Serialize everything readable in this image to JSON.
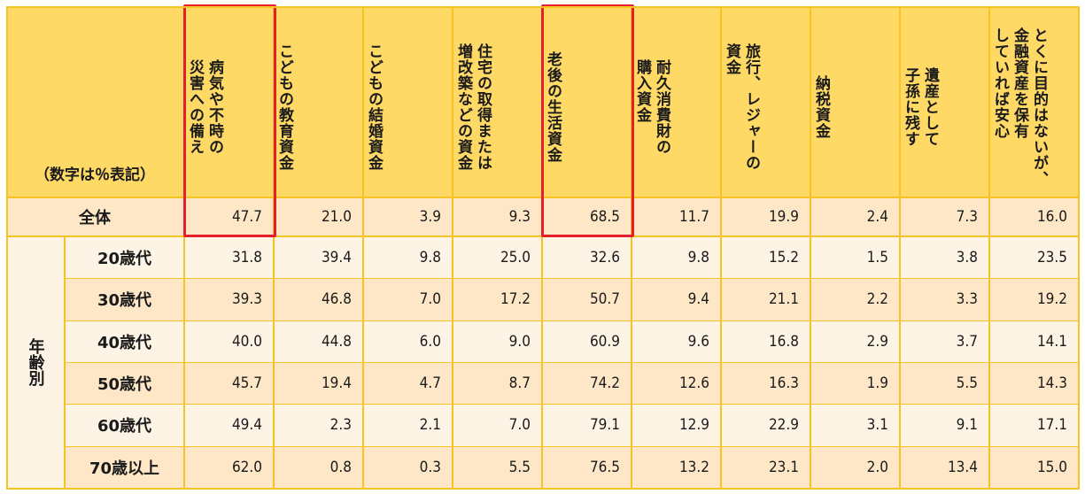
{
  "note": "（数字は％表記）",
  "columns": [
    "病気や不時の災害への備え",
    "こどもの教育資金",
    "こどもの結婚資金",
    "住宅の取得または増改築などの資金",
    "老後の生活資金",
    "耐久消費財の購入資金",
    "旅行、レジャーの資金",
    "納税資金",
    "遺産として子孫に残す",
    "とくに目的はないが、金融資産を保有していれば安心"
  ],
  "column_display": [
    "病気や不時の\n災害への備え",
    "こどもの教育資金",
    "こどもの結婚資金",
    "住宅の取得または\n増改築などの資金",
    "老後の生活資金",
    "耐久消費財の\n購入資金",
    "旅行、レジャーの\n資金",
    "納税資金",
    "遺産として\n子孫に残す",
    "とくに目的はないが、\n金融資産を保有\nしていれば安心"
  ],
  "total_row": {
    "label": "全体",
    "values": [
      "47.7",
      "21.0",
      "3.9",
      "9.3",
      "68.5",
      "11.7",
      "19.9",
      "2.4",
      "7.3",
      "16.0"
    ]
  },
  "group_label": "年齢別",
  "rows": [
    {
      "label": "20歳代",
      "values": [
        "31.8",
        "39.4",
        "9.8",
        "25.0",
        "32.6",
        "9.8",
        "15.2",
        "1.5",
        "3.8",
        "23.5"
      ]
    },
    {
      "label": "30歳代",
      "values": [
        "39.3",
        "46.8",
        "7.0",
        "17.2",
        "50.7",
        "9.4",
        "21.1",
        "2.2",
        "3.3",
        "19.2"
      ]
    },
    {
      "label": "40歳代",
      "values": [
        "40.0",
        "44.8",
        "6.0",
        "9.0",
        "60.9",
        "9.6",
        "16.8",
        "2.9",
        "3.7",
        "14.1"
      ]
    },
    {
      "label": "50歳代",
      "values": [
        "45.7",
        "19.4",
        "4.7",
        "8.7",
        "74.2",
        "12.6",
        "16.3",
        "1.9",
        "5.5",
        "14.3"
      ]
    },
    {
      "label": "60歳代",
      "values": [
        "49.4",
        "2.3",
        "2.1",
        "7.0",
        "79.1",
        "12.9",
        "22.9",
        "3.1",
        "9.1",
        "17.1"
      ]
    },
    {
      "label": "70歳以上",
      "values": [
        "62.0",
        "0.8",
        "0.3",
        "5.5",
        "76.5",
        "13.2",
        "23.1",
        "2.0",
        "13.4",
        "15.0"
      ]
    }
  ],
  "highlighted_columns": [
    0,
    4
  ],
  "colors": {
    "header_bg": "#ffd966",
    "total_bg": "#fde7c7",
    "row_light": "#fef4e6",
    "row_dark": "#fde7c7",
    "grid": "#f5c423",
    "highlight": "#e41e2a"
  },
  "chart_data": {
    "type": "table",
    "title": "",
    "unit": "%",
    "categories": [
      "病気や不時の災害への備え",
      "こどもの教育資金",
      "こどもの結婚資金",
      "住宅の取得または増改築などの資金",
      "老後の生活資金",
      "耐久消費財の購入資金",
      "旅行、レジャーの資金",
      "納税資金",
      "遺産として子孫に残す",
      "とくに目的はないが、金融資産を保有していれば安心"
    ],
    "series": [
      {
        "name": "全体",
        "values": [
          47.7,
          21.0,
          3.9,
          9.3,
          68.5,
          11.7,
          19.9,
          2.4,
          7.3,
          16.0
        ]
      },
      {
        "name": "20歳代",
        "values": [
          31.8,
          39.4,
          9.8,
          25.0,
          32.6,
          9.8,
          15.2,
          1.5,
          3.8,
          23.5
        ]
      },
      {
        "name": "30歳代",
        "values": [
          39.3,
          46.8,
          7.0,
          17.2,
          50.7,
          9.4,
          21.1,
          2.2,
          3.3,
          19.2
        ]
      },
      {
        "name": "40歳代",
        "values": [
          40.0,
          44.8,
          6.0,
          9.0,
          60.9,
          9.6,
          16.8,
          2.9,
          3.7,
          14.1
        ]
      },
      {
        "name": "50歳代",
        "values": [
          45.7,
          19.4,
          4.7,
          8.7,
          74.2,
          12.6,
          16.3,
          1.9,
          5.5,
          14.3
        ]
      },
      {
        "name": "60歳代",
        "values": [
          49.4,
          2.3,
          2.1,
          7.0,
          79.1,
          12.9,
          22.9,
          3.1,
          9.1,
          17.1
        ]
      },
      {
        "name": "70歳以上",
        "values": [
          62.0,
          0.8,
          0.3,
          5.5,
          76.5,
          13.2,
          23.1,
          2.0,
          13.4,
          15.0
        ]
      }
    ],
    "annotations": [
      "（数字は％表記）",
      "年齢別",
      "highlighted: 病気や不時の災害への備え, 老後の生活資金"
    ]
  }
}
